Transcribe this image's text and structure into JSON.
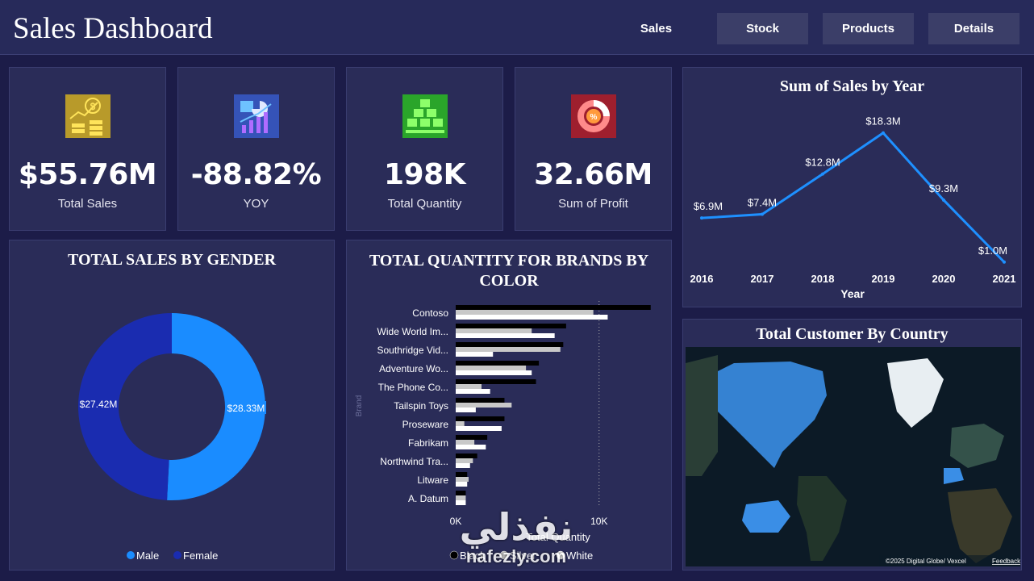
{
  "header": {
    "title": "Sales Dashboard",
    "nav": [
      {
        "label": "Sales",
        "active": true
      },
      {
        "label": "Stock",
        "active": false
      },
      {
        "label": "Products",
        "active": false
      },
      {
        "label": "Details",
        "active": false
      }
    ]
  },
  "kpis": [
    {
      "value": "$55.76M",
      "label": "Total Sales",
      "icon": "money-coins-icon",
      "color": "#b89a2a"
    },
    {
      "value": "-88.82%",
      "label": "YOY",
      "icon": "growth-chart-icon",
      "color": "#3553b8"
    },
    {
      "value": "198K",
      "label": "Total Quantity",
      "icon": "boxes-icon",
      "color": "#2aa52a"
    },
    {
      "value": "32.66M",
      "label": "Sum of Profit",
      "icon": "percent-donut-icon",
      "color": "#9e1f2e"
    }
  ],
  "chart_data": [
    {
      "type": "line",
      "title": "Sum of Sales by Year",
      "xlabel": "Year",
      "ylabel": "",
      "categories": [
        "2016",
        "2017",
        "2018",
        "2019",
        "2020",
        "2021"
      ],
      "values": [
        6.9,
        7.4,
        12.8,
        18.3,
        9.3,
        1.0
      ],
      "data_labels": [
        "$6.9M",
        "$7.4M",
        "$12.8M",
        "$18.3M",
        "$9.3M",
        "$1.0M"
      ],
      "ylim": [
        0,
        20
      ],
      "color": "#1e90ff",
      "grid": false
    },
    {
      "type": "pie",
      "title": "TOTAL SALES BY GENDER",
      "donut": true,
      "slices": [
        {
          "name": "Male",
          "value": 28.33,
          "label": "$28.33M",
          "color": "#1a8cff"
        },
        {
          "name": "Female",
          "value": 27.42,
          "label": "$27.42M",
          "color": "#1a2cb0"
        }
      ],
      "legend": "bottom"
    },
    {
      "type": "bar",
      "orientation": "horizontal",
      "title": "TOTAL QUANTITY FOR BRANDS BY COLOR",
      "xlabel": "Total Quantity",
      "ylabel": "Brand",
      "xlim": [
        0,
        13500
      ],
      "ticks": [
        {
          "value": 0,
          "label": "0K"
        },
        {
          "value": 10000,
          "label": "10K"
        }
      ],
      "categories": [
        "Contoso",
        "Wide World Im...",
        "Southridge Vid...",
        "Adventure Wo...",
        "The Phone Co...",
        "Tailspin Toys",
        "Proseware",
        "Fabrikam",
        "Northwind Tra...",
        "Litware",
        "A. Datum"
      ],
      "series": [
        {
          "name": "Black",
          "color": "#000000",
          "values": [
            13600,
            7700,
            7500,
            5800,
            5600,
            3400,
            3400,
            2200,
            1500,
            800,
            700
          ]
        },
        {
          "name": "Silver",
          "color": "#c8c8c8",
          "values": [
            9600,
            5300,
            7300,
            4900,
            1800,
            3900,
            600,
            1300,
            1200,
            900,
            700
          ]
        },
        {
          "name": "White",
          "color": "#ffffff",
          "values": [
            10600,
            6900,
            2600,
            5300,
            2400,
            1400,
            3200,
            2100,
            1000,
            800,
            700
          ]
        }
      ],
      "legend": "bottom"
    }
  ],
  "map": {
    "title": "Total Customer By Country",
    "attribution": "©2025 Digital Globe/ Vexcel",
    "feedback": "Feedback",
    "highlight_color": "#3a8ee6"
  },
  "watermark": {
    "glyph": "نفذلي",
    "text": "nafezly.com"
  }
}
